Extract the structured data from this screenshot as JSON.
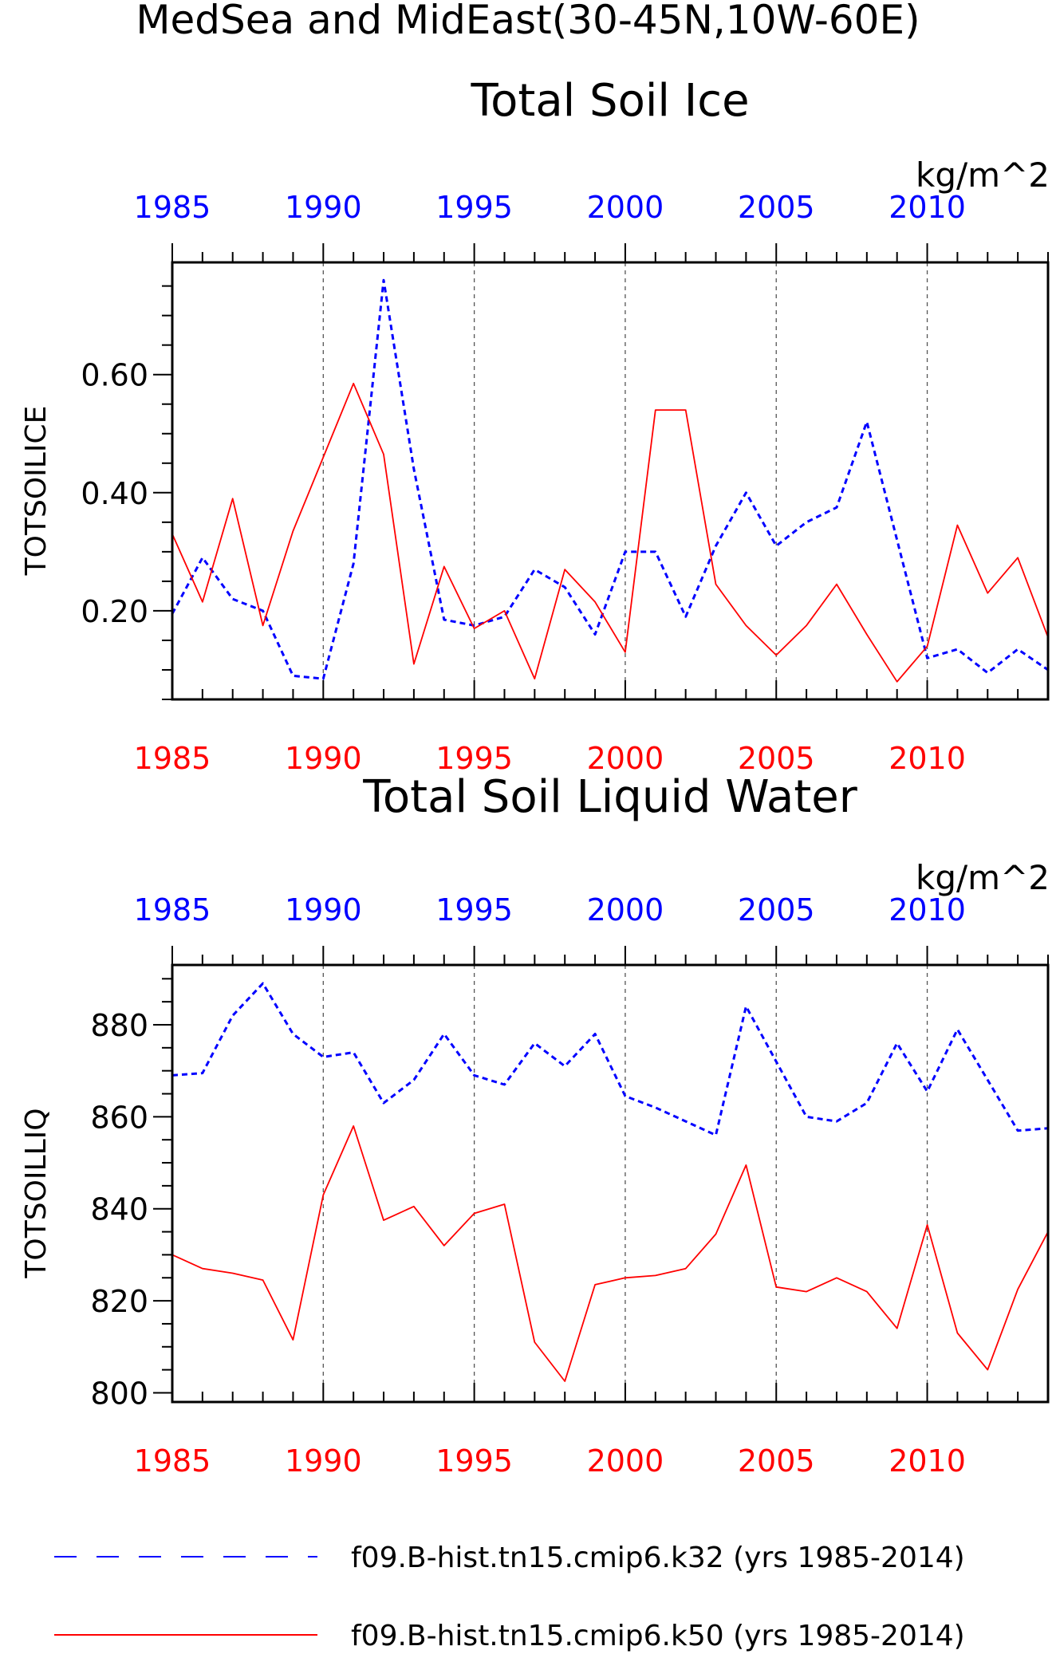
{
  "figure": {
    "title": "MedSea and MidEast(30-45N,10W-60E)"
  },
  "legend": {
    "placement": "bottom",
    "entries": [
      {
        "label": "f09.B-hist.tn15.cmip6.k32 (yrs 1985-2014)",
        "color": "#0000ff",
        "style": "dashed"
      },
      {
        "label": "f09.B-hist.tn15.cmip6.k50 (yrs 1985-2014)",
        "color": "#ff0000",
        "style": "solid"
      }
    ]
  },
  "chart_data": [
    {
      "type": "line",
      "title": "Total Soil Ice",
      "ylabel": "TOTSOILICE",
      "units": "kg/m^2",
      "xlim": [
        1985,
        2014
      ],
      "ylim": [
        0.05,
        0.79
      ],
      "yticks": [
        "0.20",
        "0.40",
        "0.60"
      ],
      "xticks": [
        "1985",
        "1990",
        "1995",
        "2000",
        "2005",
        "2010"
      ],
      "vertical_gridlines": [
        1990,
        1995,
        2000,
        2005,
        2010
      ],
      "x": [
        1985,
        1986,
        1987,
        1988,
        1989,
        1990,
        1991,
        1992,
        1993,
        1994,
        1995,
        1996,
        1997,
        1998,
        1999,
        2000,
        2001,
        2002,
        2003,
        2004,
        2005,
        2006,
        2007,
        2008,
        2009,
        2010,
        2011,
        2012,
        2013,
        2014
      ],
      "series": [
        {
          "name": "f09.B-hist.tn15.cmip6.k32",
          "color": "#0000ff",
          "dashed": true,
          "values": [
            0.195,
            0.29,
            0.22,
            0.2,
            0.09,
            0.085,
            0.28,
            0.76,
            0.44,
            0.185,
            0.175,
            0.19,
            0.27,
            0.24,
            0.16,
            0.3,
            0.3,
            0.19,
            0.31,
            0.4,
            0.31,
            0.35,
            0.375,
            0.52,
            0.32,
            0.12,
            0.135,
            0.095,
            0.135,
            0.1
          ]
        },
        {
          "name": "f09.B-hist.tn15.cmip6.k50",
          "color": "#ff0000",
          "dashed": false,
          "values": [
            0.33,
            0.215,
            0.39,
            0.175,
            0.335,
            0.46,
            0.585,
            0.465,
            0.11,
            0.275,
            0.17,
            0.2,
            0.085,
            0.27,
            0.215,
            0.13,
            0.54,
            0.54,
            0.245,
            0.175,
            0.125,
            0.175,
            0.245,
            0.16,
            0.08,
            0.14,
            0.345,
            0.23,
            0.29,
            0.155
          ]
        }
      ]
    },
    {
      "type": "line",
      "title": "Total Soil Liquid Water",
      "ylabel": "TOTSOILLIQ",
      "units": "kg/m^2",
      "xlim": [
        1985,
        2014
      ],
      "ylim": [
        798,
        893
      ],
      "yticks": [
        "800",
        "820",
        "840",
        "860",
        "880"
      ],
      "xticks": [
        "1985",
        "1990",
        "1995",
        "2000",
        "2005",
        "2010"
      ],
      "vertical_gridlines": [
        1990,
        1995,
        2000,
        2005,
        2010
      ],
      "x": [
        1985,
        1986,
        1987,
        1988,
        1989,
        1990,
        1991,
        1992,
        1993,
        1994,
        1995,
        1996,
        1997,
        1998,
        1999,
        2000,
        2001,
        2002,
        2003,
        2004,
        2005,
        2006,
        2007,
        2008,
        2009,
        2010,
        2011,
        2012,
        2013,
        2014
      ],
      "series": [
        {
          "name": "f09.B-hist.tn15.cmip6.k32",
          "color": "#0000ff",
          "dashed": true,
          "values": [
            869,
            869.5,
            882,
            889,
            878,
            873,
            874,
            863,
            868,
            878,
            869,
            867,
            876,
            871,
            878,
            864.5,
            862,
            859,
            856,
            884,
            872,
            860,
            859,
            863,
            876,
            865.5,
            879,
            868,
            857,
            857.5
          ]
        },
        {
          "name": "f09.B-hist.tn15.cmip6.k50",
          "color": "#ff0000",
          "dashed": false,
          "values": [
            830,
            827,
            826,
            824.5,
            811.5,
            843,
            858,
            837.5,
            840.5,
            832,
            839,
            841,
            811,
            802.5,
            823.5,
            825,
            825.5,
            827,
            834.5,
            849.5,
            823,
            822,
            825,
            822,
            814,
            836.5,
            813,
            805,
            822.5,
            835
          ]
        }
      ]
    }
  ]
}
